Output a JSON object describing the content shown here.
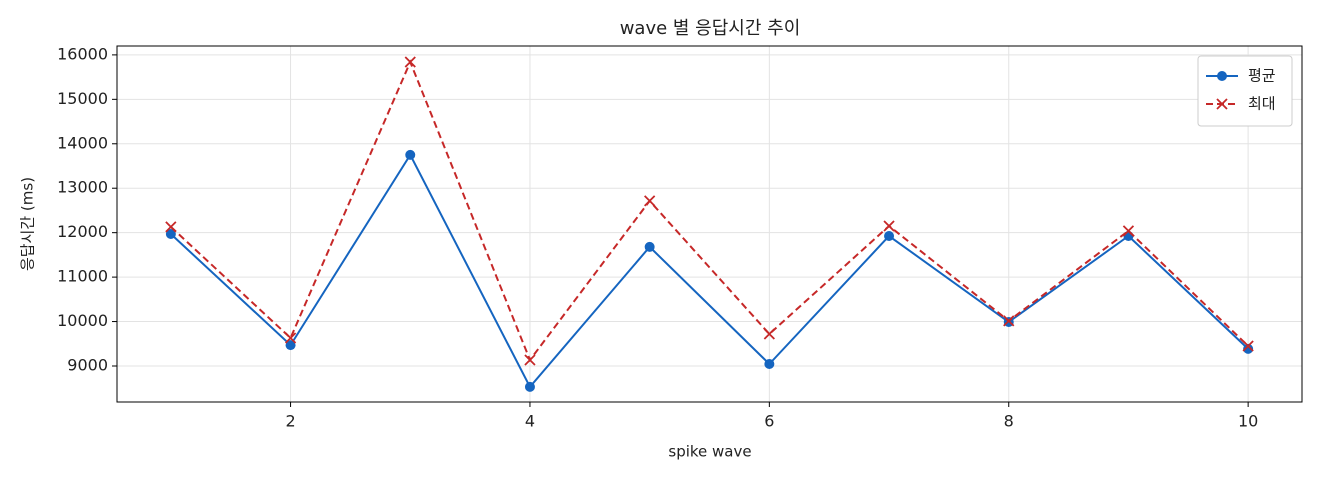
{
  "chart_data": {
    "type": "line",
    "title": "wave 별 응답시간 추이",
    "x_label": "spike wave",
    "y_label": "응답시간 (ms)",
    "x": [
      1,
      2,
      3,
      4,
      5,
      6,
      7,
      8,
      9,
      10
    ],
    "series": [
      {
        "name": "평균",
        "color": "#1565c0",
        "marker": "o",
        "linestyle": "solid",
        "values": [
          11970,
          9470,
          13750,
          8530,
          11680,
          9045,
          11925,
          9990,
          11925,
          9385
        ]
      },
      {
        "name": "최대",
        "color": "#c62828",
        "marker": "x",
        "linestyle": "dashed",
        "values": [
          12130,
          9630,
          15840,
          9135,
          12715,
          9720,
          12150,
          10015,
          12040,
          9450
        ]
      }
    ],
    "xlim": [
      0.55,
      10.45
    ],
    "ylim": [
      8190,
      16200
    ],
    "xticks": [
      2,
      4,
      6,
      8,
      10
    ],
    "yticks": [
      9000,
      10000,
      11000,
      12000,
      13000,
      14000,
      15000,
      16000
    ],
    "grid": true,
    "legend": "upper right"
  }
}
